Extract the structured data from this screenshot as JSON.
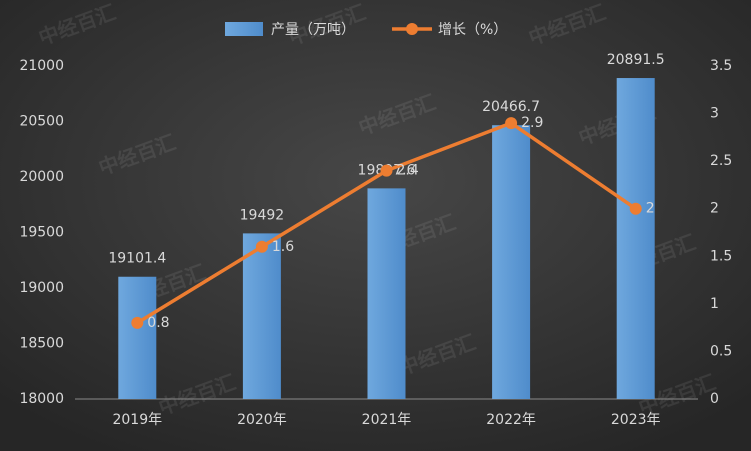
{
  "chart_data": {
    "type": "bar-line",
    "watermark": "中经百汇",
    "categories": [
      "2019年",
      "2020年",
      "2021年",
      "2022年",
      "2023年"
    ],
    "series": [
      {
        "name": "产量（万吨）",
        "type": "bar",
        "color": "#5b9bd5",
        "values": [
          19101.4,
          19492,
          19897.6,
          20466.7,
          20891.5
        ]
      },
      {
        "name": "增长（%）",
        "type": "line",
        "axis": "y2",
        "color": "#ed7d31",
        "values": [
          0.8,
          1.6,
          2.4,
          2.9,
          2
        ]
      }
    ],
    "ylim": [
      18000,
      21000
    ],
    "yticks": [
      18000,
      18500,
      19000,
      19500,
      20000,
      20500,
      21000
    ],
    "y2lim": [
      0,
      3.5
    ],
    "y2ticks": [
      0,
      0.5,
      1,
      1.5,
      2,
      2.5,
      3,
      3.5
    ],
    "grid": false,
    "legend": "top"
  }
}
